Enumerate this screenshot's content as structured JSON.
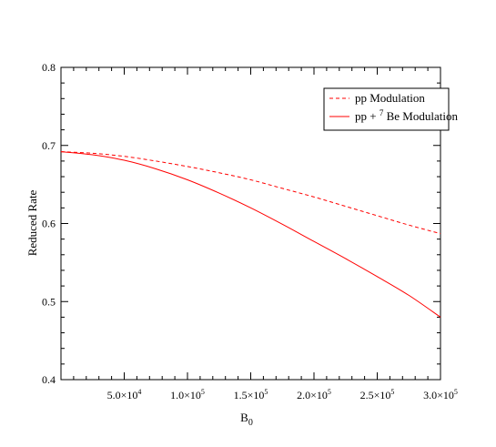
{
  "chart_data": {
    "type": "line",
    "xlabel": "B",
    "xlabel_sub": "0",
    "ylabel": "Reduced Rate",
    "xlim": [
      0,
      300000
    ],
    "ylim": [
      0.4,
      0.8
    ],
    "grid": false,
    "legend_position": "top-right",
    "y_ticks": [
      {
        "value": 0.4,
        "label": "0.4"
      },
      {
        "value": 0.5,
        "label": "0.5"
      },
      {
        "value": 0.6,
        "label": "0.6"
      },
      {
        "value": 0.7,
        "label": "0.7"
      },
      {
        "value": 0.8,
        "label": "0.8"
      }
    ],
    "x_ticks": [
      {
        "value": 50000,
        "mant": "5.0×10",
        "exp": "4"
      },
      {
        "value": 100000,
        "mant": "1.0×10",
        "exp": "5"
      },
      {
        "value": 150000,
        "mant": "1.5×10",
        "exp": "5"
      },
      {
        "value": 200000,
        "mant": "2.0×10",
        "exp": "5"
      },
      {
        "value": 250000,
        "mant": "2.5×10",
        "exp": "5"
      },
      {
        "value": 300000,
        "mant": "3.0×10",
        "exp": "5"
      }
    ],
    "series": [
      {
        "name": "pp Modulation",
        "name_parts": [
          "pp Modulation",
          "",
          ""
        ],
        "color": "#ff0000",
        "dash": "dashed",
        "x": [
          0,
          25000,
          50000,
          75000,
          100000,
          125000,
          150000,
          175000,
          200000,
          225000,
          250000,
          275000,
          300000
        ],
        "values": [
          0.692,
          0.69,
          0.686,
          0.68,
          0.673,
          0.665,
          0.656,
          0.645,
          0.634,
          0.622,
          0.61,
          0.598,
          0.587
        ]
      },
      {
        "name": "pp + 7 Be Modulation",
        "name_parts": [
          "pp + ",
          "7",
          " Be Modulation"
        ],
        "color": "#ff0000",
        "dash": "solid",
        "x": [
          0,
          25000,
          50000,
          75000,
          100000,
          125000,
          150000,
          175000,
          200000,
          225000,
          250000,
          275000,
          300000
        ],
        "values": [
          0.692,
          0.688,
          0.681,
          0.67,
          0.656,
          0.639,
          0.62,
          0.599,
          0.577,
          0.555,
          0.532,
          0.508,
          0.48
        ]
      }
    ]
  }
}
